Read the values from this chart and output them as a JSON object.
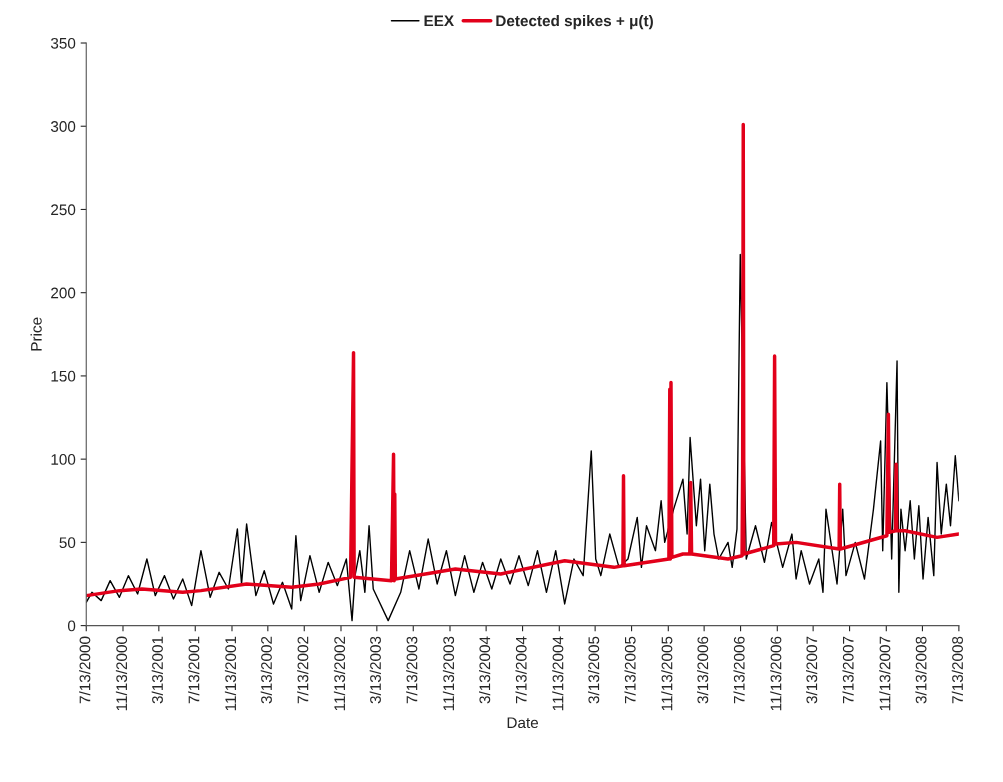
{
  "chart_data": {
    "type": "line",
    "xlabel": "Date",
    "ylabel": "Price",
    "legend": "top",
    "grid": false,
    "marker": "none",
    "line_style": "solid",
    "xlim": [
      "2000-07-13",
      "2008-07-13"
    ],
    "xticks": [
      {
        "value": "2000-07-13",
        "label": "7/13/2000"
      },
      {
        "value": "2000-11-13",
        "label": "11/13/2000"
      },
      {
        "value": "2001-03-13",
        "label": "3/13/2001"
      },
      {
        "value": "2001-07-13",
        "label": "7/13/2001"
      },
      {
        "value": "2001-11-13",
        "label": "11/13/2001"
      },
      {
        "value": "2002-03-13",
        "label": "3/13/2002"
      },
      {
        "value": "2002-07-13",
        "label": "7/13/2002"
      },
      {
        "value": "2002-11-13",
        "label": "11/13/2002"
      },
      {
        "value": "2003-03-13",
        "label": "3/13/2003"
      },
      {
        "value": "2003-07-13",
        "label": "7/13/2003"
      },
      {
        "value": "2003-11-13",
        "label": "11/13/2003"
      },
      {
        "value": "2004-03-13",
        "label": "3/13/2004"
      },
      {
        "value": "2004-07-13",
        "label": "7/13/2004"
      },
      {
        "value": "2004-11-13",
        "label": "11/13/2004"
      },
      {
        "value": "2005-03-13",
        "label": "3/13/2005"
      },
      {
        "value": "2005-07-13",
        "label": "7/13/2005"
      },
      {
        "value": "2005-11-13",
        "label": "11/13/2005"
      },
      {
        "value": "2006-03-13",
        "label": "3/13/2006"
      },
      {
        "value": "2006-07-13",
        "label": "7/13/2006"
      },
      {
        "value": "2006-11-13",
        "label": "11/13/2006"
      },
      {
        "value": "2007-03-13",
        "label": "3/13/2007"
      },
      {
        "value": "2007-07-13",
        "label": "7/13/2007"
      },
      {
        "value": "2007-11-13",
        "label": "11/13/2007"
      },
      {
        "value": "2008-03-13",
        "label": "3/13/2008"
      },
      {
        "value": "2008-07-13",
        "label": "7/13/2008"
      }
    ],
    "ylim": [
      0,
      350
    ],
    "yticks": [
      0,
      50,
      100,
      150,
      200,
      250,
      300,
      350
    ],
    "series": [
      {
        "name": "EEX",
        "color": "#000000",
        "x": [
          "2000-07-13",
          "2000-08-01",
          "2000-09-01",
          "2000-10-01",
          "2000-11-01",
          "2000-12-01",
          "2001-01-01",
          "2001-02-01",
          "2001-03-01",
          "2001-04-01",
          "2001-05-01",
          "2001-06-01",
          "2001-07-01",
          "2001-08-01",
          "2001-09-01",
          "2001-10-01",
          "2001-11-01",
          "2001-12-01",
          "2001-12-15",
          "2002-01-01",
          "2002-02-01",
          "2002-03-01",
          "2002-04-01",
          "2002-05-01",
          "2002-06-01",
          "2002-06-15",
          "2002-07-01",
          "2002-08-01",
          "2002-09-01",
          "2002-10-01",
          "2002-11-01",
          "2002-12-01",
          "2002-12-20",
          "2002-12-30",
          "2003-01-15",
          "2003-02-01",
          "2003-02-15",
          "2003-03-01",
          "2003-04-20",
          "2003-06-01",
          "2003-07-01",
          "2003-08-01",
          "2003-09-01",
          "2003-10-01",
          "2003-11-01",
          "2003-12-01",
          "2004-01-01",
          "2004-02-01",
          "2004-03-01",
          "2004-04-01",
          "2004-05-01",
          "2004-06-01",
          "2004-07-01",
          "2004-08-01",
          "2004-09-01",
          "2004-10-01",
          "2004-11-01",
          "2004-12-01",
          "2005-01-01",
          "2005-02-01",
          "2005-02-28",
          "2005-03-15",
          "2005-04-01",
          "2005-05-01",
          "2005-06-01",
          "2005-07-01",
          "2005-08-01",
          "2005-08-15",
          "2005-09-01",
          "2005-10-01",
          "2005-10-20",
          "2005-11-01",
          "2005-12-01",
          "2006-01-01",
          "2006-01-15",
          "2006-01-25",
          "2006-02-15",
          "2006-03-01",
          "2006-03-15",
          "2006-04-01",
          "2006-04-15",
          "2006-05-01",
          "2006-06-01",
          "2006-06-15",
          "2006-07-01",
          "2006-07-12",
          "2006-08-01",
          "2006-09-01",
          "2006-10-01",
          "2006-10-25",
          "2006-12-01",
          "2007-01-01",
          "2007-01-15",
          "2007-02-01",
          "2007-03-01",
          "2007-04-01",
          "2007-04-15",
          "2007-04-25",
          "2007-06-01",
          "2007-06-20",
          "2007-07-01",
          "2007-08-01",
          "2007-09-01",
          "2007-10-01",
          "2007-10-25",
          "2007-11-01",
          "2007-11-15",
          "2007-12-01",
          "2007-12-19",
          "2007-12-25",
          "2008-01-01",
          "2008-01-15",
          "2008-02-01",
          "2008-02-15",
          "2008-03-01",
          "2008-03-15",
          "2008-04-01",
          "2008-04-20",
          "2008-05-01",
          "2008-05-15",
          "2008-06-01",
          "2008-06-15",
          "2008-07-01",
          "2008-07-13"
        ],
        "values": [
          14,
          20,
          15,
          27,
          17,
          30,
          19,
          40,
          18,
          30,
          16,
          28,
          12,
          45,
          17,
          32,
          22,
          58,
          25,
          61,
          18,
          33,
          13,
          26,
          10,
          54,
          15,
          42,
          20,
          38,
          24,
          40,
          3,
          30,
          45,
          20,
          60,
          22,
          3,
          20,
          45,
          22,
          52,
          25,
          45,
          18,
          42,
          20,
          38,
          22,
          40,
          25,
          42,
          24,
          45,
          20,
          45,
          13,
          40,
          30,
          105,
          40,
          30,
          55,
          35,
          40,
          65,
          35,
          60,
          45,
          75,
          50,
          70,
          88,
          55,
          113,
          60,
          88,
          45,
          85,
          55,
          40,
          50,
          35,
          58,
          223,
          40,
          60,
          38,
          62,
          35,
          55,
          28,
          45,
          25,
          40,
          20,
          70,
          25,
          70,
          30,
          50,
          28,
          70,
          111,
          45,
          146,
          40,
          159,
          20,
          70,
          45,
          75,
          40,
          72,
          28,
          65,
          30,
          98,
          55,
          85,
          60,
          102,
          75
        ]
      },
      {
        "name": "Detected spikes + μ(t)",
        "color": "#e2001a",
        "x": [
          "2000-07-13",
          "2000-11-01",
          "2001-01-15",
          "2001-06-01",
          "2001-08-01",
          "2002-01-01",
          "2002-06-01",
          "2002-09-01",
          "2002-12-15",
          "2002-12-25",
          "2002-12-27",
          "2003-05-01",
          "2003-05-08",
          "2003-05-10",
          "2003-05-12",
          "2003-05-14",
          "2003-12-01",
          "2004-05-01",
          "2004-12-01",
          "2005-05-15",
          "2005-06-14",
          "2005-06-16",
          "2005-06-18",
          "2005-11-15",
          "2005-11-18",
          "2005-11-20",
          "2005-11-22",
          "2005-11-25",
          "2006-01-01",
          "2006-01-24",
          "2006-01-27",
          "2006-01-30",
          "2006-06-01",
          "2006-07-18",
          "2006-07-20",
          "2006-07-22",
          "2006-07-24",
          "2006-11-01",
          "2006-11-04",
          "2006-11-07",
          "2007-01-15",
          "2007-06-08",
          "2007-06-10",
          "2007-06-12",
          "2007-11-15",
          "2007-11-20",
          "2007-11-23",
          "2007-12-14",
          "2007-12-16",
          "2007-12-18",
          "2008-01-15",
          "2008-05-01",
          "2008-07-13"
        ],
        "values": [
          18,
          21,
          22,
          20,
          21,
          25,
          23,
          25,
          29,
          164,
          29,
          27,
          103,
          27,
          79,
          28,
          34,
          31,
          39,
          35,
          36,
          90,
          36,
          40,
          142,
          40,
          146,
          41,
          43,
          43,
          86,
          43,
          40,
          42,
          95,
          301,
          43,
          48,
          162,
          49,
          50,
          46,
          85,
          46,
          54,
          127,
          56,
          57,
          97,
          57,
          57,
          53,
          55
        ]
      }
    ]
  }
}
